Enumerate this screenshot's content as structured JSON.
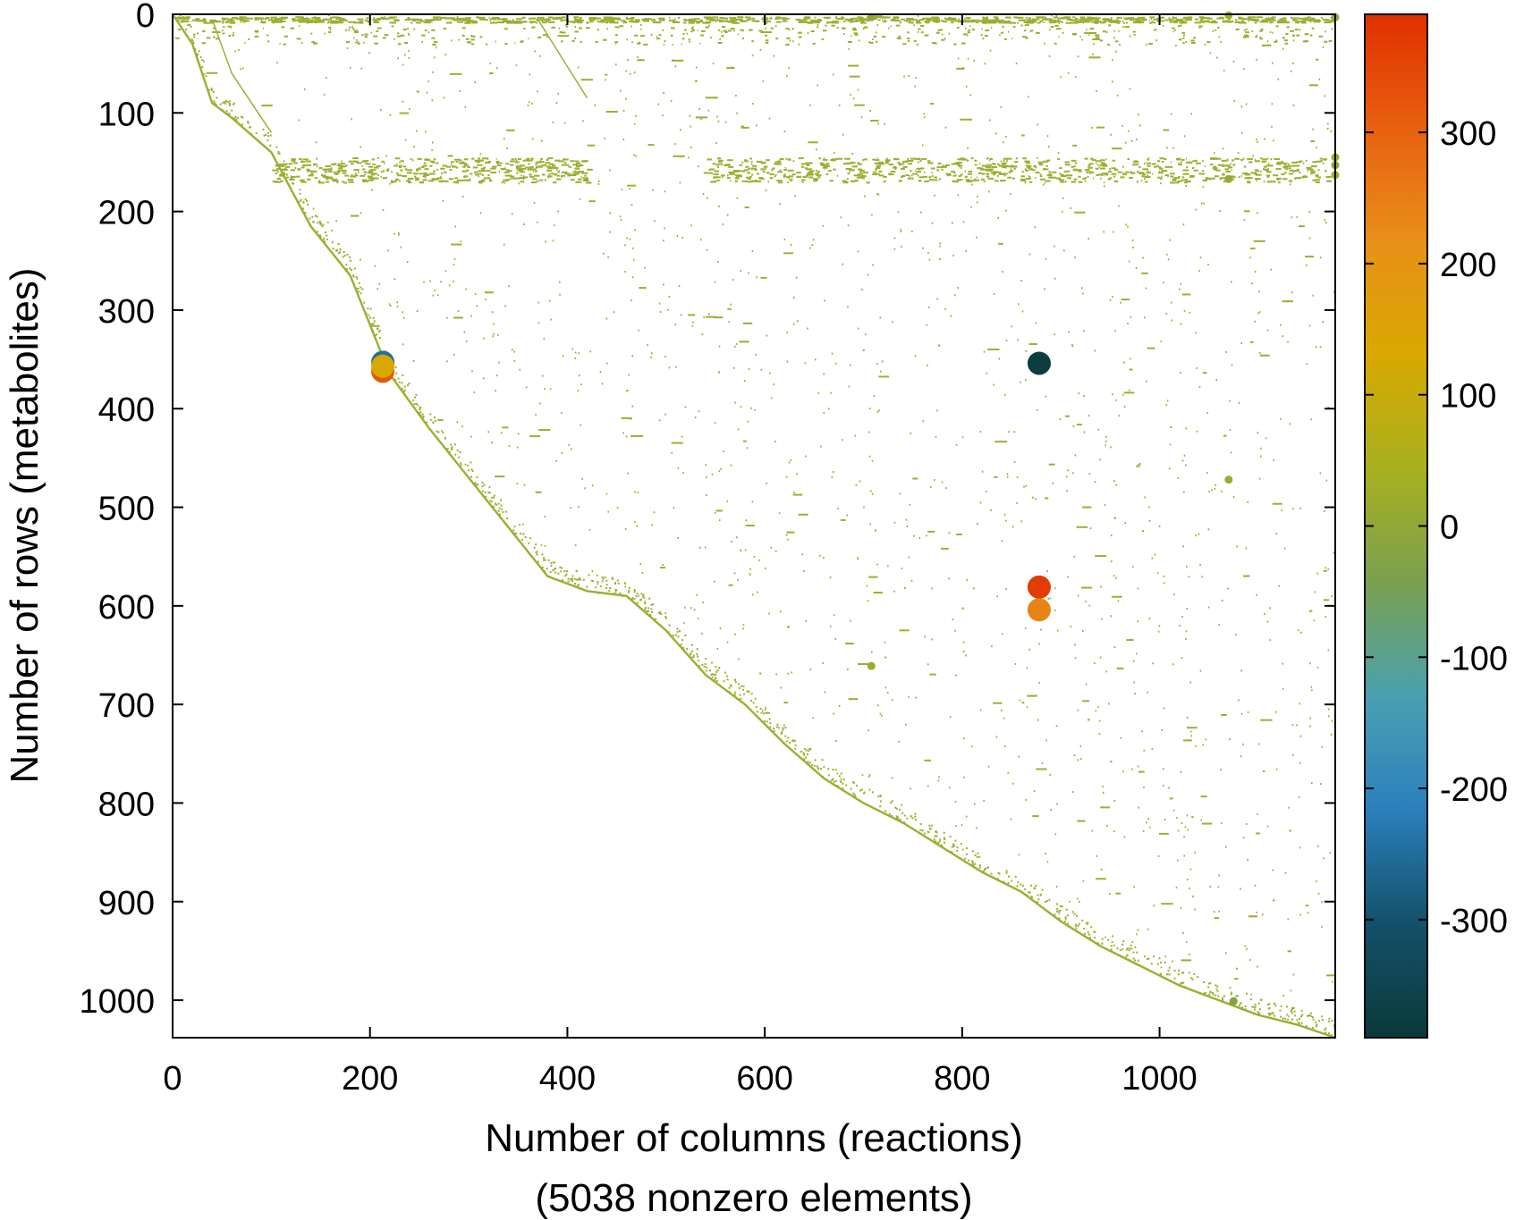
{
  "chart_data": {
    "type": "scatter",
    "title": "",
    "xlabel": "Number of columns (reactions)",
    "xlabel2": "(5038 nonzero elements)",
    "ylabel": "Number of rows (metabolites)",
    "xlim": [
      0,
      1178
    ],
    "ylim": [
      0,
      1038
    ],
    "y_inverted": true,
    "grid": false,
    "x_ticks": [
      "0",
      "200",
      "400",
      "600",
      "800",
      "1000"
    ],
    "x_tick_values": [
      0,
      200,
      400,
      600,
      800,
      1000
    ],
    "y_ticks": [
      "0",
      "100",
      "200",
      "300",
      "400",
      "500",
      "600",
      "700",
      "800",
      "900",
      "1000"
    ],
    "y_tick_values": [
      0,
      100,
      200,
      300,
      400,
      500,
      600,
      700,
      800,
      900,
      1000
    ],
    "colorbar": {
      "range": [
        -390,
        390
      ],
      "ticks": [
        "300",
        "200",
        "100",
        "0",
        "-100",
        "-200",
        "-300"
      ],
      "tick_values": [
        300,
        200,
        100,
        0,
        -100,
        -200,
        -300
      ],
      "colors": [
        "#0a3a3a",
        "#14506a",
        "#2a80bc",
        "#4aa0b0",
        "#7aa050",
        "#a8b020",
        "#d8a800",
        "#e89018",
        "#e86010",
        "#e03000"
      ]
    },
    "base_color": "#9ab030",
    "diagonal": [
      [
        0,
        0
      ],
      [
        20,
        30
      ],
      [
        40,
        90
      ],
      [
        60,
        105
      ],
      [
        100,
        140
      ],
      [
        140,
        215
      ],
      [
        180,
        265
      ],
      [
        220,
        365
      ],
      [
        260,
        420
      ],
      [
        300,
        470
      ],
      [
        340,
        520
      ],
      [
        380,
        570
      ],
      [
        420,
        585
      ],
      [
        460,
        590
      ],
      [
        500,
        625
      ],
      [
        540,
        670
      ],
      [
        580,
        700
      ],
      [
        620,
        740
      ],
      [
        660,
        775
      ],
      [
        700,
        800
      ],
      [
        740,
        820
      ],
      [
        780,
        845
      ],
      [
        820,
        870
      ],
      [
        860,
        890
      ],
      [
        900,
        920
      ],
      [
        940,
        945
      ],
      [
        980,
        965
      ],
      [
        1020,
        985
      ],
      [
        1060,
        1000
      ],
      [
        1100,
        1015
      ],
      [
        1140,
        1025
      ],
      [
        1178,
        1038
      ]
    ],
    "highlight_points": [
      {
        "x": 213,
        "y": 353,
        "value": -250
      },
      {
        "x": 213,
        "y": 362,
        "value": 320
      },
      {
        "x": 213,
        "y": 357,
        "value": 130
      },
      {
        "x": 878,
        "y": 354,
        "value": -380
      },
      {
        "x": 878,
        "y": 581,
        "value": 370
      },
      {
        "x": 878,
        "y": 604,
        "value": 240
      },
      {
        "x": 708,
        "y": 3,
        "value": 0
      },
      {
        "x": 708,
        "y": 661,
        "value": 20
      },
      {
        "x": 1070,
        "y": 1,
        "value": 40
      },
      {
        "x": 1075,
        "y": 1001,
        "value": -30
      },
      {
        "x": 1178,
        "y": 3,
        "value": 10
      },
      {
        "x": 1178,
        "y": 145,
        "value": 20
      },
      {
        "x": 1178,
        "y": 153,
        "value": -10
      },
      {
        "x": 1178,
        "y": 163,
        "value": 30
      },
      {
        "x": 1070,
        "y": 167,
        "value": 10
      },
      {
        "x": 1070,
        "y": 472,
        "value": 20
      }
    ]
  }
}
